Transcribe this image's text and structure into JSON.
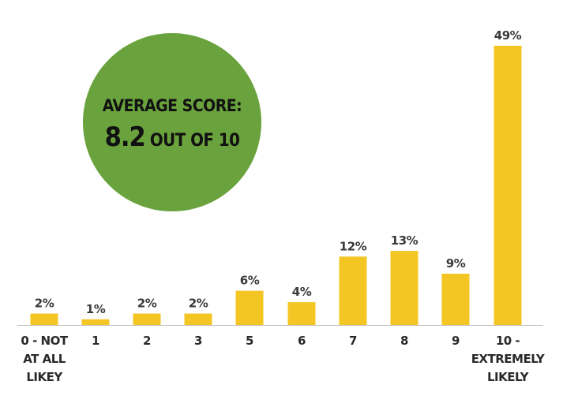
{
  "chart_data": {
    "type": "bar",
    "categories": [
      "0 - NOT AT ALL LIKEY",
      "1",
      "2",
      "3",
      "5",
      "6",
      "7",
      "8",
      "9",
      "10 - EXTREMELY LIKELY"
    ],
    "category_lines": [
      [
        "0 - NOT",
        "AT ALL",
        "LIKEY"
      ],
      [
        "1"
      ],
      [
        "2"
      ],
      [
        "3"
      ],
      [
        "5"
      ],
      [
        "6"
      ],
      [
        "7"
      ],
      [
        "8"
      ],
      [
        "9"
      ],
      [
        "10 -",
        "EXTREMELY",
        "LIKELY"
      ]
    ],
    "values": [
      2,
      1,
      2,
      2,
      6,
      4,
      12,
      13,
      9,
      49
    ],
    "data_labels": [
      "2%",
      "1%",
      "2%",
      "2%",
      "6%",
      "4%",
      "12%",
      "13%",
      "9%",
      "49%"
    ],
    "unit": "%",
    "ylim": [
      0,
      49
    ],
    "title": "",
    "xlabel": "",
    "ylabel": "",
    "grid": false,
    "legend": "none",
    "bar_color": "#f3c623",
    "axis_color": "#bfbfbf"
  },
  "average_badge": {
    "title": "AVERAGE SCORE:",
    "score": "8.2",
    "suffix": "OUT OF 10",
    "color": "#6aa33d"
  }
}
